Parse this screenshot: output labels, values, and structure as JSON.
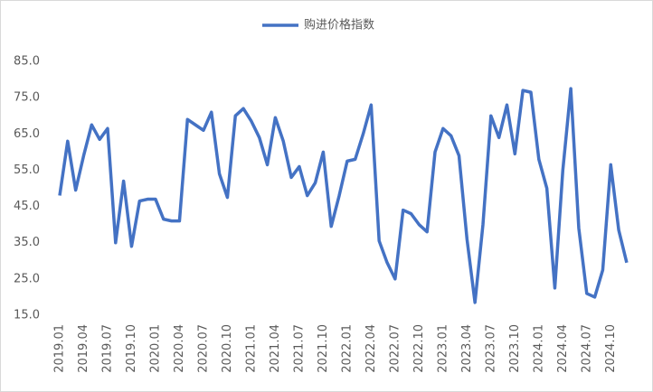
{
  "chart_data": {
    "type": "line",
    "categories": [
      "2019.01",
      null,
      null,
      "2019.04",
      null,
      null,
      "2019.07",
      null,
      null,
      "2019.10",
      null,
      null,
      "2020.01",
      null,
      null,
      "2020.04",
      null,
      null,
      "2020.07",
      null,
      null,
      "2020.10",
      null,
      null,
      "2021.01",
      null,
      null,
      "2021.04",
      null,
      null,
      "2021.07",
      null,
      null,
      "2021.10",
      null,
      null,
      "2022.01",
      null,
      null,
      "2022.04",
      null,
      null,
      "2022.07",
      null,
      null,
      "2022.10",
      null,
      null,
      "2023.01",
      null,
      null,
      "2023.04",
      null,
      null,
      "2023.07",
      null,
      null,
      "2023.10",
      null,
      null,
      "2024.01",
      null,
      null,
      "2024.04",
      null,
      null,
      "2024.07",
      null,
      null,
      "2024.10",
      null,
      null
    ],
    "series": [
      {
        "name": "购进价格指数",
        "color": "#4472c4",
        "values": [
          48,
          63,
          49.5,
          59,
          67.5,
          63.5,
          66.5,
          35,
          52,
          34,
          46.5,
          47,
          47,
          41.5,
          41,
          41,
          69,
          67.5,
          66,
          71,
          54,
          47.5,
          70,
          72,
          68.5,
          64,
          56.5,
          69.5,
          63,
          53,
          56,
          48,
          51.5,
          60,
          39.5,
          48,
          57.5,
          58,
          65,
          73,
          35.5,
          29.5,
          25,
          44,
          43,
          40,
          38,
          60,
          66.5,
          64.5,
          59,
          36,
          18.5,
          40,
          70,
          64,
          73,
          59.5,
          77,
          76.5,
          58,
          50,
          22.5,
          55,
          77.5,
          39,
          21,
          20,
          27.5,
          56.5,
          38.5,
          29.5
        ]
      }
    ],
    "ylim": [
      15,
      85
    ],
    "yticks": [
      {
        "value": 15,
        "label": "15.0"
      },
      {
        "value": 25,
        "label": "25.0"
      },
      {
        "value": 35,
        "label": "35.0"
      },
      {
        "value": 45,
        "label": "45.0"
      },
      {
        "value": 55,
        "label": "55.0"
      },
      {
        "value": 65,
        "label": "65.0"
      },
      {
        "value": 75,
        "label": "75.0"
      },
      {
        "value": 85,
        "label": "85.0"
      }
    ],
    "grid": false,
    "legend": "top"
  }
}
